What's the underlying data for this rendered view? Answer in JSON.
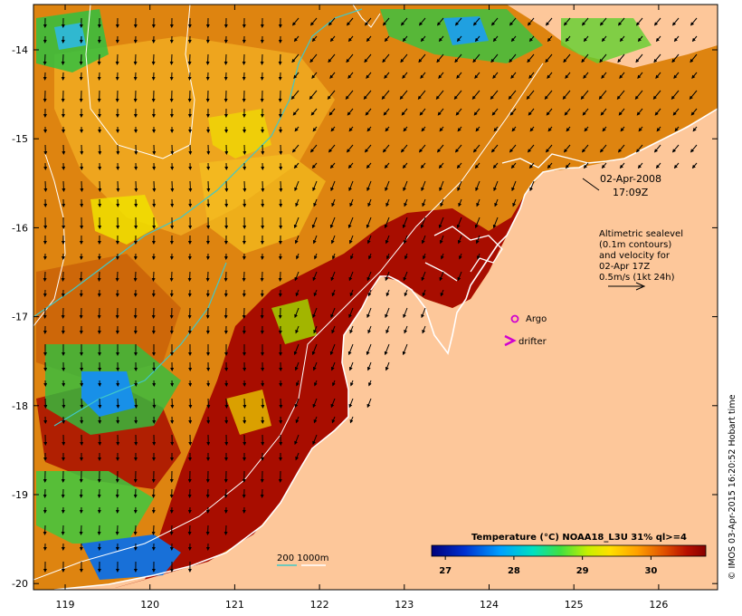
{
  "map": {
    "date": "02-Apr-2008",
    "time": "17:09Z",
    "lon_ticks": [
      "119",
      "120",
      "121",
      "122",
      "123",
      "124",
      "125",
      "126"
    ],
    "lat_ticks": [
      "-14",
      "-15",
      "-16",
      "-17",
      "-18",
      "-19",
      "-20"
    ],
    "legend": {
      "altimetry_lines": [
        "Altimetric sealevel",
        "(0.1m contours)",
        "and velocity for",
        "02-Apr 17Z",
        "0.5m/s (1kt 24h)"
      ],
      "argo_label": "Argo",
      "drifter_label": "drifter",
      "depth_label": "200  1000m"
    },
    "colorbar": {
      "title": "Temperature (°C) NOAA18_L3U 31% ql>=4",
      "labels": [
        "27",
        "28",
        "29",
        "30"
      ],
      "range": [
        26.8,
        30.8
      ]
    },
    "credit": "© IMOS 03-Apr-2015 16:20:52 Hobart time",
    "colors": {
      "land": "#fdc79a",
      "sst_warm": "#a80d00",
      "argo": "#d000d0",
      "depth_200": "#40c8c8",
      "contour": "#ffffff"
    }
  }
}
